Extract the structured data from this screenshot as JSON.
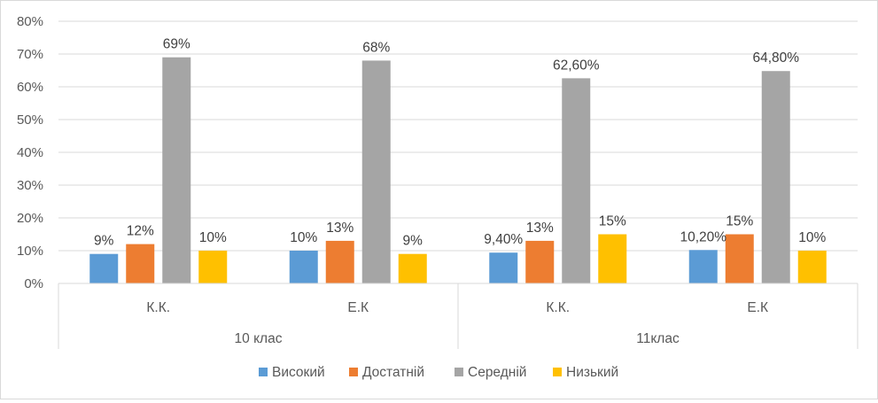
{
  "chart_data": {
    "type": "bar",
    "y_ticks": [
      "0%",
      "10%",
      "20%",
      "30%",
      "40%",
      "50%",
      "60%",
      "70%",
      "80%"
    ],
    "ylim": [
      0,
      80
    ],
    "grid": true,
    "legend_position": "bottom",
    "groups": [
      {
        "label": "10 клас",
        "categories": [
          {
            "label": "К.К.",
            "values": [
              9,
              12,
              69,
              10
            ],
            "labels": [
              "9%",
              "12%",
              "69%",
              "10%"
            ]
          },
          {
            "label": "Е.К",
            "values": [
              10,
              13,
              68,
              9
            ],
            "labels": [
              "10%",
              "13%",
              "68%",
              "9%"
            ]
          }
        ]
      },
      {
        "label": "11клас",
        "categories": [
          {
            "label": "К.К.",
            "values": [
              9.4,
              13,
              62.6,
              15
            ],
            "labels": [
              "9,40%",
              "13%",
              "62,60%",
              "15%"
            ]
          },
          {
            "label": "Е.К",
            "values": [
              10.2,
              15,
              64.8,
              10
            ],
            "labels": [
              "10,20%",
              "15%",
              "64,80%",
              "10%"
            ]
          }
        ]
      }
    ],
    "series": [
      {
        "name": "Високий",
        "color": "#5b9bd5"
      },
      {
        "name": "Достатній",
        "color": "#ed7d31"
      },
      {
        "name": "Середній",
        "color": "#a5a5a5"
      },
      {
        "name": "Низький",
        "color": "#ffc000"
      }
    ]
  }
}
